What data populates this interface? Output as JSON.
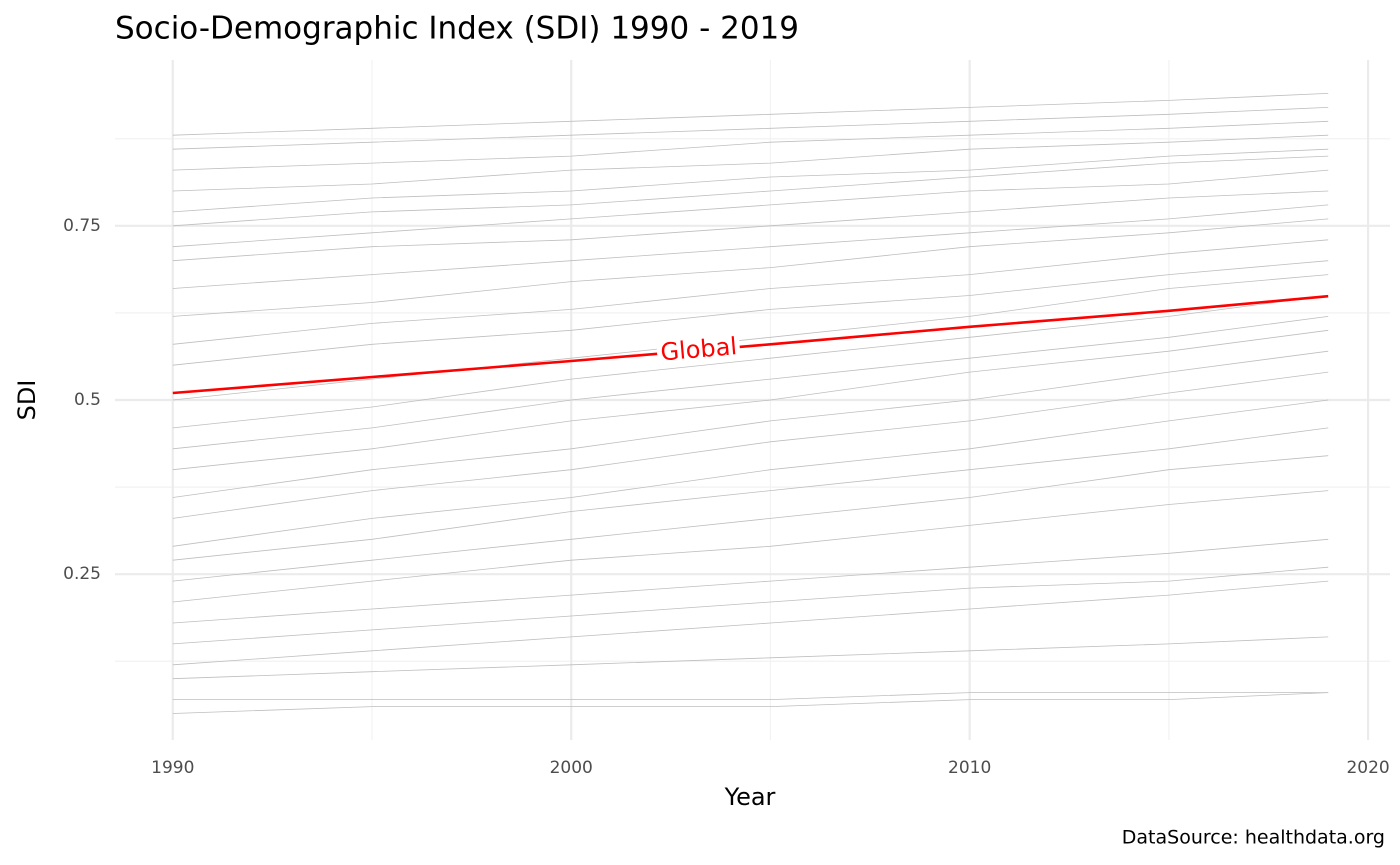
{
  "chart_data": {
    "type": "line",
    "title": "Socio-Demographic Index (SDI) 1990 - 2019",
    "x_label": "Year",
    "y_label": "SDI",
    "caption": "DataSource: healthdata.org",
    "x": [
      1990,
      1995,
      2000,
      2005,
      2010,
      2015,
      2019
    ],
    "xlim": [
      1988.55,
      2020.55
    ],
    "xticks": [
      1990,
      2000,
      2010,
      2020
    ],
    "x_minor_grid": [
      1995,
      2005,
      2015
    ],
    "ylim": [
      0.012,
      0.988
    ],
    "yticks": [
      0.25,
      0.5,
      0.75
    ],
    "y_minor_grid": [
      0.125,
      0.375,
      0.625,
      0.875
    ],
    "grid": true,
    "series": [
      {
        "color": "#bebebe",
        "values": [
          0.88,
          0.89,
          0.9,
          0.91,
          0.92,
          0.93,
          0.94
        ]
      },
      {
        "color": "#bebebe",
        "values": [
          0.86,
          0.87,
          0.88,
          0.89,
          0.9,
          0.91,
          0.92
        ]
      },
      {
        "color": "#bebebe",
        "values": [
          0.83,
          0.84,
          0.85,
          0.87,
          0.88,
          0.89,
          0.9
        ]
      },
      {
        "color": "#bebebe",
        "values": [
          0.8,
          0.81,
          0.83,
          0.84,
          0.86,
          0.87,
          0.88
        ]
      },
      {
        "color": "#bebebe",
        "values": [
          0.77,
          0.79,
          0.8,
          0.82,
          0.83,
          0.85,
          0.86
        ]
      },
      {
        "color": "#bebebe",
        "values": [
          0.75,
          0.77,
          0.78,
          0.8,
          0.82,
          0.84,
          0.85
        ]
      },
      {
        "color": "#bebebe",
        "values": [
          0.72,
          0.74,
          0.76,
          0.78,
          0.8,
          0.81,
          0.83
        ]
      },
      {
        "color": "#bebebe",
        "values": [
          0.7,
          0.72,
          0.73,
          0.75,
          0.77,
          0.79,
          0.8
        ]
      },
      {
        "color": "#bebebe",
        "values": [
          0.66,
          0.68,
          0.7,
          0.72,
          0.74,
          0.76,
          0.78
        ]
      },
      {
        "color": "#bebebe",
        "values": [
          0.62,
          0.64,
          0.67,
          0.69,
          0.72,
          0.74,
          0.76
        ]
      },
      {
        "color": "#bebebe",
        "values": [
          0.58,
          0.61,
          0.63,
          0.66,
          0.68,
          0.71,
          0.73
        ]
      },
      {
        "color": "#bebebe",
        "values": [
          0.55,
          0.58,
          0.6,
          0.63,
          0.65,
          0.68,
          0.7
        ]
      },
      {
        "color": "#bebebe",
        "values": [
          0.5,
          0.53,
          0.56,
          0.59,
          0.62,
          0.66,
          0.68
        ]
      },
      {
        "color": "#bebebe",
        "values": [
          0.46,
          0.49,
          0.53,
          0.56,
          0.59,
          0.62,
          0.65
        ]
      },
      {
        "color": "#bebebe",
        "values": [
          0.43,
          0.46,
          0.5,
          0.53,
          0.56,
          0.59,
          0.62
        ]
      },
      {
        "color": "#bebebe",
        "values": [
          0.4,
          0.43,
          0.47,
          0.5,
          0.54,
          0.57,
          0.6
        ]
      },
      {
        "color": "#bebebe",
        "values": [
          0.36,
          0.4,
          0.43,
          0.47,
          0.5,
          0.54,
          0.57
        ]
      },
      {
        "color": "#bebebe",
        "values": [
          0.33,
          0.37,
          0.4,
          0.44,
          0.47,
          0.51,
          0.54
        ]
      },
      {
        "color": "#bebebe",
        "values": [
          0.29,
          0.33,
          0.36,
          0.4,
          0.43,
          0.47,
          0.5
        ]
      },
      {
        "color": "#bebebe",
        "values": [
          0.27,
          0.3,
          0.34,
          0.37,
          0.4,
          0.43,
          0.46
        ]
      },
      {
        "color": "#bebebe",
        "values": [
          0.24,
          0.27,
          0.3,
          0.33,
          0.36,
          0.4,
          0.42
        ]
      },
      {
        "color": "#bebebe",
        "values": [
          0.21,
          0.24,
          0.27,
          0.29,
          0.32,
          0.35,
          0.37
        ]
      },
      {
        "color": "#bebebe",
        "values": [
          0.18,
          0.2,
          0.22,
          0.24,
          0.26,
          0.28,
          0.3
        ]
      },
      {
        "color": "#bebebe",
        "values": [
          0.15,
          0.17,
          0.19,
          0.21,
          0.23,
          0.24,
          0.26
        ]
      },
      {
        "color": "#bebebe",
        "values": [
          0.12,
          0.14,
          0.16,
          0.18,
          0.2,
          0.22,
          0.24
        ]
      },
      {
        "color": "#bebebe",
        "values": [
          0.1,
          0.11,
          0.12,
          0.13,
          0.14,
          0.15,
          0.16
        ]
      },
      {
        "color": "#bebebe",
        "values": [
          0.07,
          0.07,
          0.07,
          0.07,
          0.08,
          0.08,
          0.08
        ]
      },
      {
        "color": "#bebebe",
        "values": [
          0.05,
          0.06,
          0.06,
          0.06,
          0.07,
          0.07,
          0.08
        ]
      },
      {
        "name": "Global",
        "color": "#ff0000",
        "values": [
          0.51,
          0.533,
          0.556,
          0.58,
          0.605,
          0.628,
          0.649
        ]
      }
    ]
  }
}
